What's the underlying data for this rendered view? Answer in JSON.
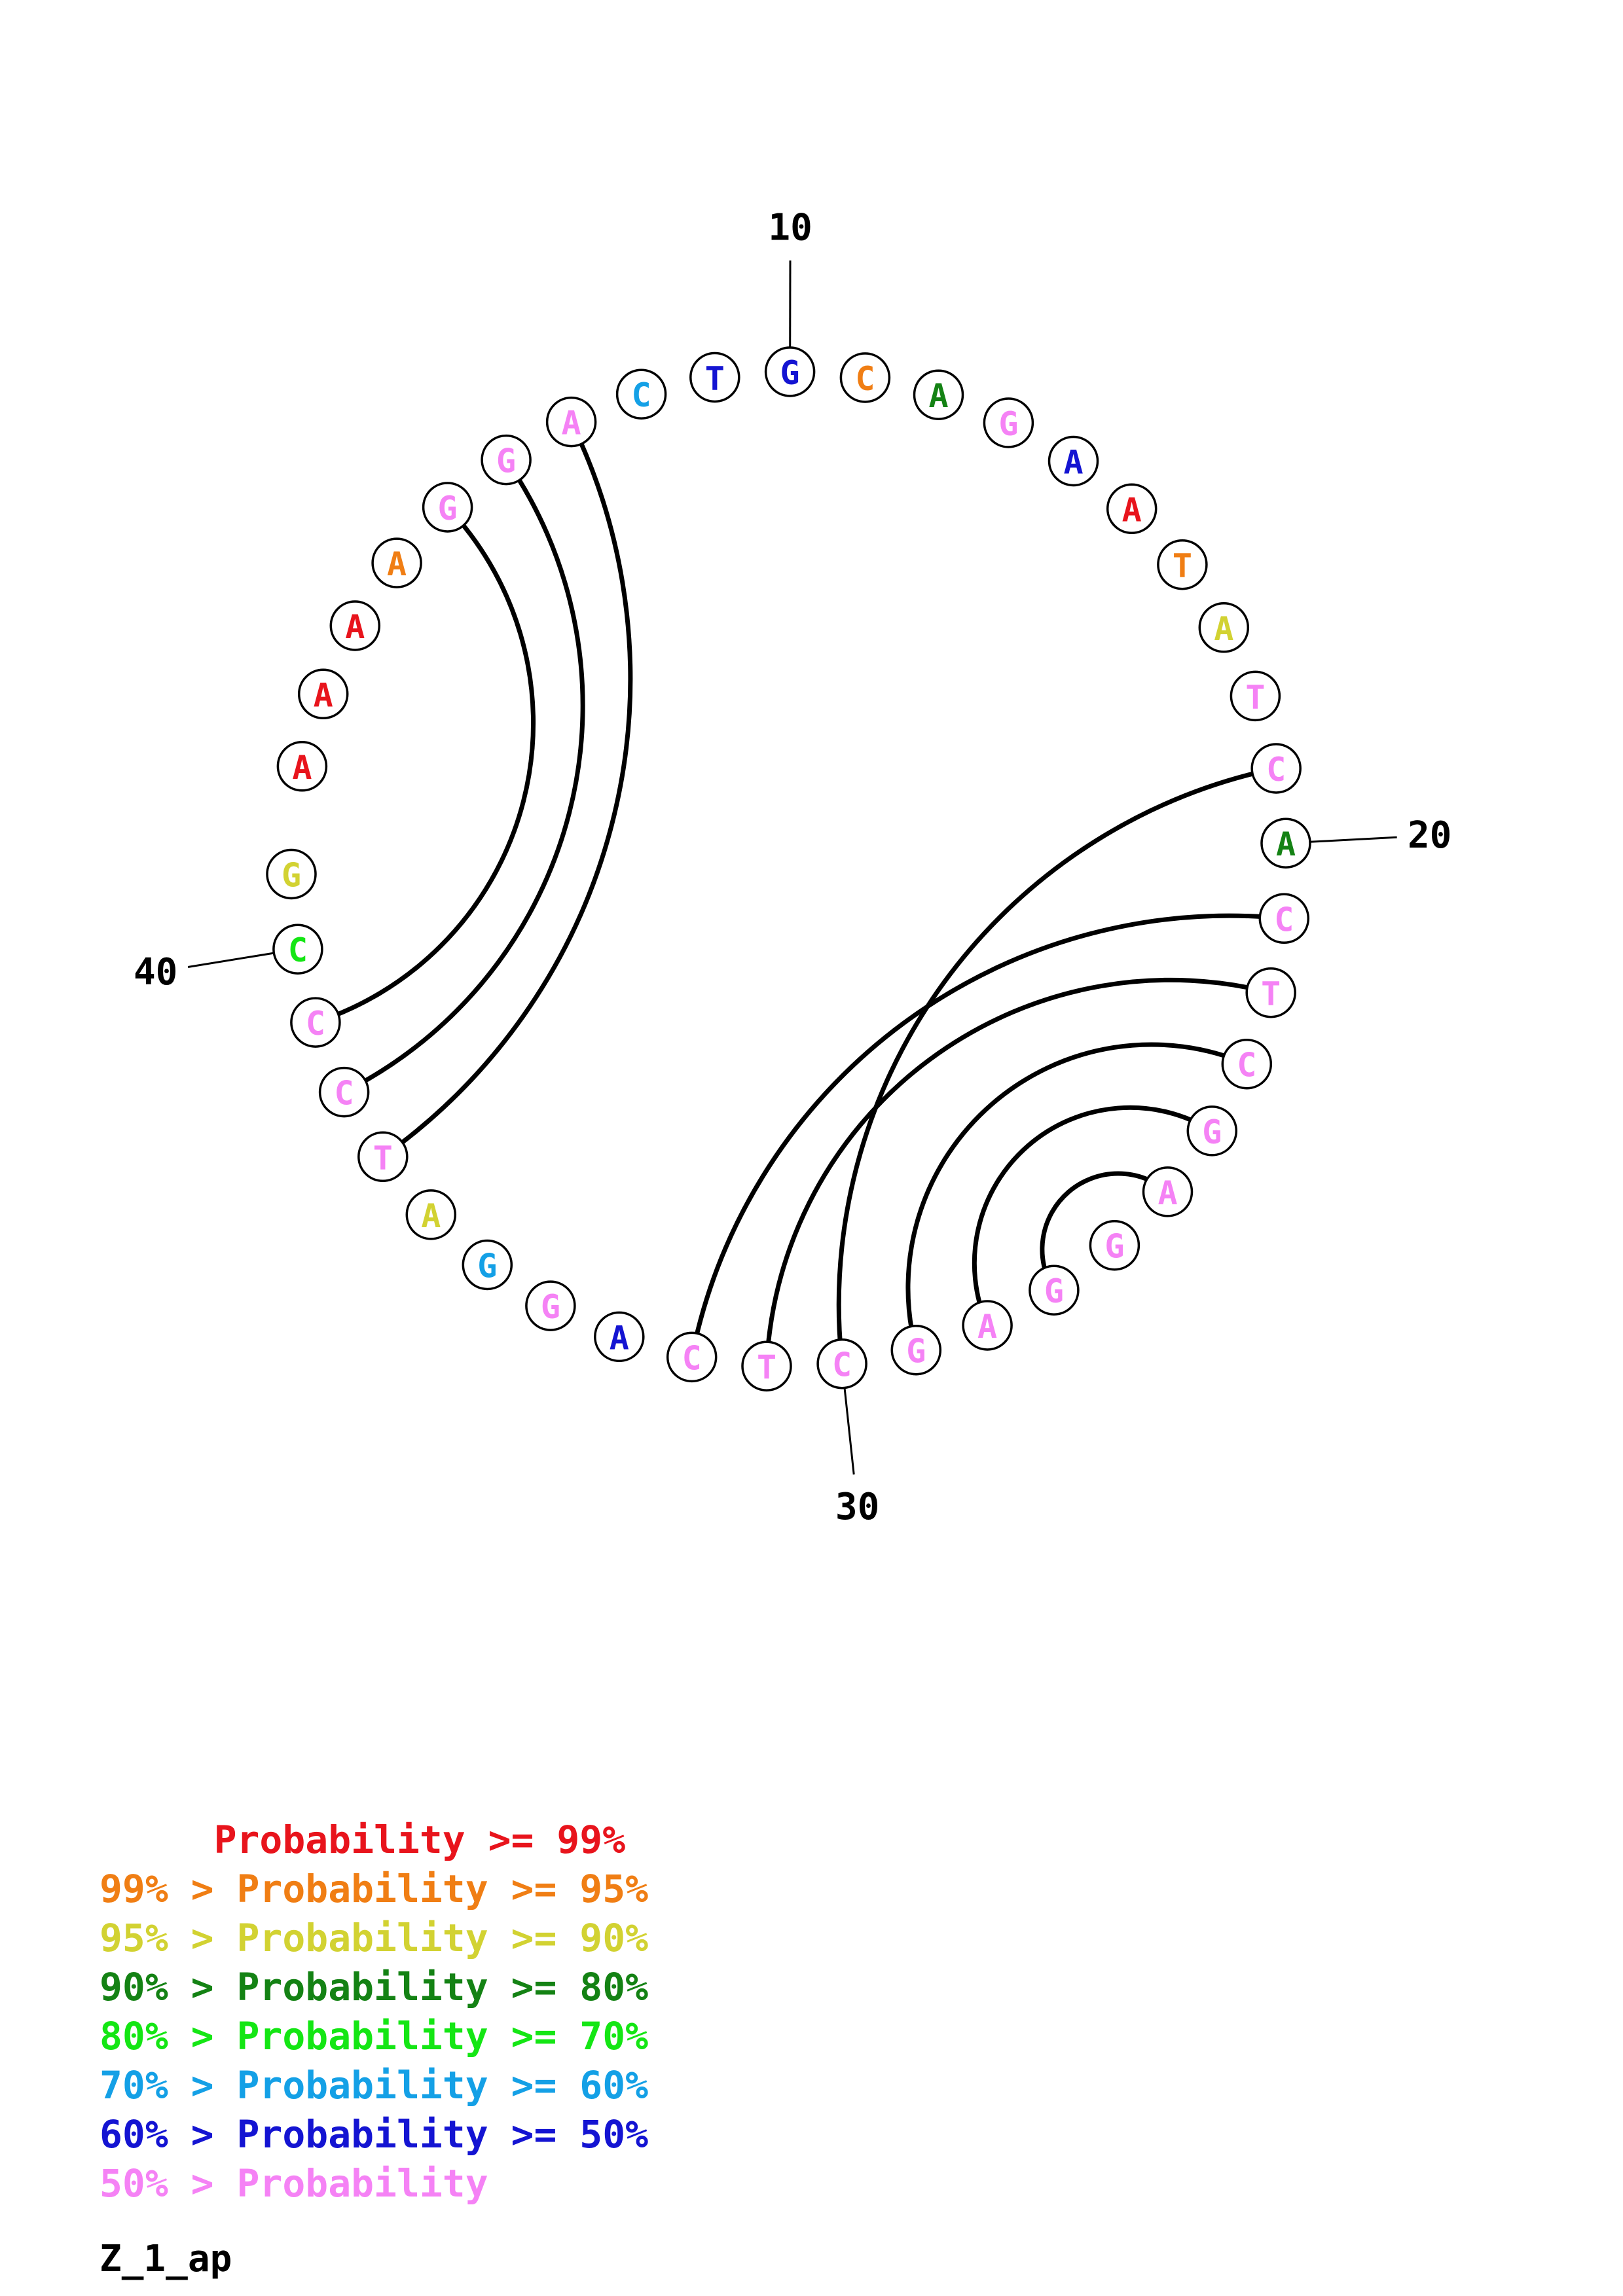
{
  "colors": {
    "p99": "#e8141c",
    "p95": "#f07e14",
    "p90": "#d2d232",
    "p80": "#148214",
    "p70": "#14e614",
    "p60": "#14a0e6",
    "p50": "#1414d2",
    "plow": "#f582f5"
  },
  "sequence": [
    {
      "index": 1,
      "base": "A",
      "color": "p99"
    },
    {
      "index": 2,
      "base": "A",
      "color": "p99"
    },
    {
      "index": 3,
      "base": "A",
      "color": "p99"
    },
    {
      "index": 4,
      "base": "A",
      "color": "p95"
    },
    {
      "index": 5,
      "base": "G",
      "color": "plow"
    },
    {
      "index": 6,
      "base": "G",
      "color": "plow"
    },
    {
      "index": 7,
      "base": "A",
      "color": "plow"
    },
    {
      "index": 8,
      "base": "C",
      "color": "p60"
    },
    {
      "index": 9,
      "base": "T",
      "color": "p50"
    },
    {
      "index": 10,
      "base": "G",
      "color": "p50"
    },
    {
      "index": 11,
      "base": "C",
      "color": "p95"
    },
    {
      "index": 12,
      "base": "A",
      "color": "p80"
    },
    {
      "index": 13,
      "base": "G",
      "color": "plow"
    },
    {
      "index": 14,
      "base": "A",
      "color": "p50"
    },
    {
      "index": 15,
      "base": "A",
      "color": "p99"
    },
    {
      "index": 16,
      "base": "T",
      "color": "p95"
    },
    {
      "index": 17,
      "base": "A",
      "color": "p90"
    },
    {
      "index": 18,
      "base": "T",
      "color": "plow"
    },
    {
      "index": 19,
      "base": "C",
      "color": "plow"
    },
    {
      "index": 20,
      "base": "A",
      "color": "p80"
    },
    {
      "index": 21,
      "base": "C",
      "color": "plow"
    },
    {
      "index": 22,
      "base": "T",
      "color": "plow"
    },
    {
      "index": 23,
      "base": "C",
      "color": "plow"
    },
    {
      "index": 24,
      "base": "G",
      "color": "plow"
    },
    {
      "index": 25,
      "base": "A",
      "color": "plow"
    },
    {
      "index": 26,
      "base": "G",
      "color": "plow"
    },
    {
      "index": 27,
      "base": "G",
      "color": "plow"
    },
    {
      "index": 28,
      "base": "A",
      "color": "plow"
    },
    {
      "index": 29,
      "base": "G",
      "color": "plow"
    },
    {
      "index": 30,
      "base": "C",
      "color": "plow"
    },
    {
      "index": 31,
      "base": "T",
      "color": "plow"
    },
    {
      "index": 32,
      "base": "C",
      "color": "plow"
    },
    {
      "index": 33,
      "base": "A",
      "color": "p50"
    },
    {
      "index": 34,
      "base": "G",
      "color": "plow"
    },
    {
      "index": 35,
      "base": "G",
      "color": "p60"
    },
    {
      "index": 36,
      "base": "A",
      "color": "p90"
    },
    {
      "index": 37,
      "base": "T",
      "color": "plow"
    },
    {
      "index": 38,
      "base": "C",
      "color": "plow"
    },
    {
      "index": 39,
      "base": "C",
      "color": "plow"
    },
    {
      "index": 40,
      "base": "C",
      "color": "p70"
    },
    {
      "index": 41,
      "base": "G",
      "color": "p90"
    }
  ],
  "pairs": [
    [
      5,
      39
    ],
    [
      6,
      38
    ],
    [
      7,
      37
    ],
    [
      19,
      30
    ],
    [
      21,
      32
    ],
    [
      22,
      31
    ],
    [
      23,
      29
    ],
    [
      24,
      28
    ],
    [
      25,
      27
    ]
  ],
  "ticks": [
    {
      "index": 10,
      "label": "10"
    },
    {
      "index": 20,
      "label": "20"
    },
    {
      "index": 30,
      "label": "30"
    },
    {
      "index": 40,
      "label": "40"
    }
  ],
  "legend": [
    {
      "text": "     Probability >= 99%",
      "color": "p99"
    },
    {
      "text": "99% > Probability >= 95%",
      "color": "p95"
    },
    {
      "text": "95% > Probability >= 90%",
      "color": "p90"
    },
    {
      "text": "90% > Probability >= 80%",
      "color": "p80"
    },
    {
      "text": "80% > Probability >= 70%",
      "color": "p70"
    },
    {
      "text": "70% > Probability >= 60%",
      "color": "p60"
    },
    {
      "text": "60% > Probability >= 50%",
      "color": "p50"
    },
    {
      "text": "50% > Probability",
      "color": "plow"
    }
  ],
  "caption": "Z_1_ap"
}
